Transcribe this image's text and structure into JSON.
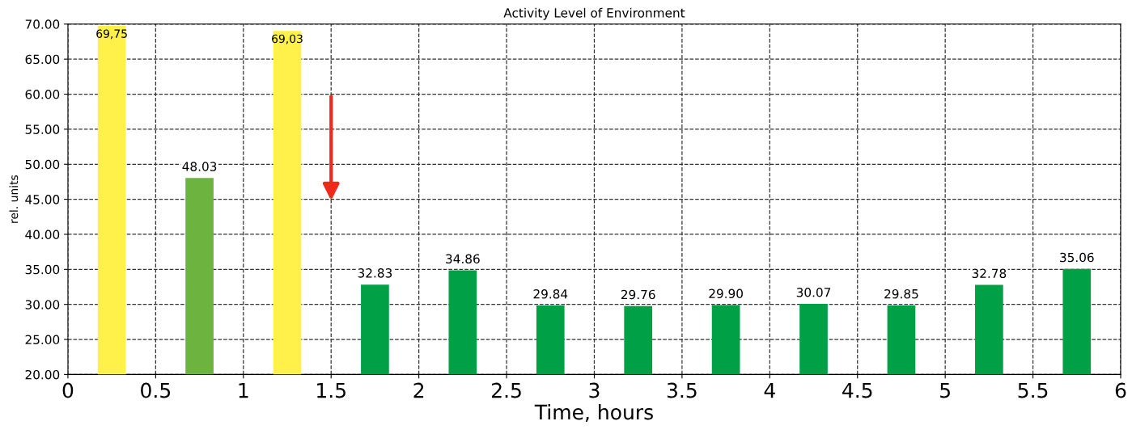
{
  "chart_data": {
    "type": "bar",
    "title": "Activity Level of Environment",
    "xlabel": "Time, hours",
    "ylabel": "rel. units",
    "x": [
      0.25,
      0.75,
      1.25,
      1.75,
      2.25,
      2.75,
      3.25,
      3.75,
      4.25,
      4.75,
      5.25,
      5.75
    ],
    "values": [
      69.75,
      48.03,
      69.03,
      32.83,
      34.86,
      29.84,
      29.76,
      29.9,
      30.07,
      29.85,
      32.78,
      35.06
    ],
    "colors": [
      "#fff04a",
      "#6db33f",
      "#fff04a",
      "#00a046",
      "#00a046",
      "#00a046",
      "#00a046",
      "#00a046",
      "#00a046",
      "#00a046",
      "#00a046",
      "#00a046"
    ],
    "value_labels": [
      "69,75",
      "48.03",
      "69,03",
      "32.83",
      "34.86",
      "29.84",
      "29.76",
      "29.90",
      "30.07",
      "29.85",
      "32.78",
      "35.06"
    ],
    "xlim": [
      0,
      6
    ],
    "xticks": [
      0,
      0.5,
      1,
      1.5,
      2,
      2.5,
      3,
      3.5,
      4,
      4.5,
      5,
      5.5,
      6
    ],
    "ylim": [
      20,
      70
    ],
    "yticks": [
      {
        "value": 20,
        "label": "20.00"
      },
      {
        "value": 25,
        "label": "25.00"
      },
      {
        "value": 30,
        "label": "30.00"
      },
      {
        "value": 35,
        "label": "35.00"
      },
      {
        "value": 40,
        "label": "40.00"
      },
      {
        "value": 45,
        "label": "45.00"
      },
      {
        "value": 50,
        "label": "50.00"
      },
      {
        "value": 55,
        "label": "55.00"
      },
      {
        "value": 60,
        "label": "60.00"
      },
      {
        "value": 65,
        "label": "65.00"
      },
      {
        "value": 70,
        "label": "70.00"
      }
    ],
    "grid": true
  }
}
